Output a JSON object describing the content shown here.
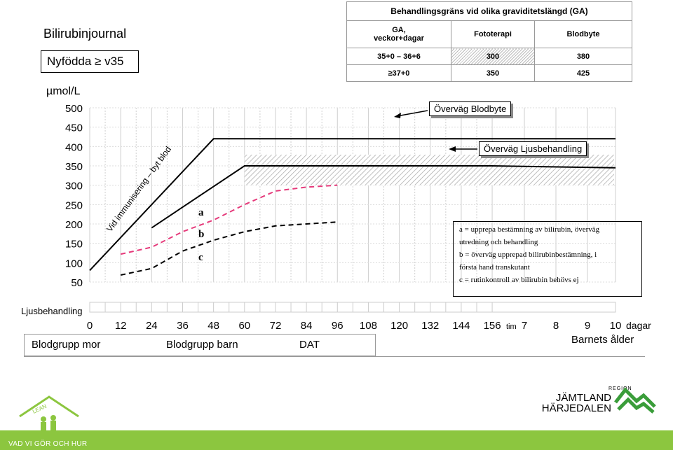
{
  "page": {
    "title": "Bilirubinjournal",
    "subtitle": "Nyfödda ≥ v35",
    "footer_text": "VAD VI GÖR OCH HUR"
  },
  "ga_table": {
    "title": "Behandlingsgräns vid olika graviditetslängd (GA)",
    "headers": [
      "GA,\nveckor+dagar",
      "Fototerapi",
      "Blodbyte"
    ],
    "rows": [
      [
        "35+0 – 36+6",
        "300",
        "380"
      ],
      [
        "≥37+0",
        "350",
        "425"
      ]
    ]
  },
  "legend_text": [
    "a = upprepa bestämning av bilirubin, överväg",
    "utredning och behandling",
    "b = överväg upprepad bilirubinbestämning, i",
    "första hand transkutant",
    "c = rutinkontroll av bilirubin behövs ej"
  ],
  "callouts": {
    "blodbyte": "Överväg Blodbyte",
    "ljusbehandling": "Överväg Ljusbehandling"
  },
  "bottom_table": {
    "cells": [
      "Blodgrupp mor",
      "Blodgrupp barn",
      "DAT"
    ]
  },
  "logo": {
    "region_small": "REGION",
    "region_line1": "JÄMTLAND",
    "region_line2": "HÄRJEDALEN",
    "lean": "LEAN"
  },
  "chart_data": {
    "type": "line",
    "ylabel": "µmol/L",
    "xlabel": "Barnets ålder",
    "x_unit_hours": "tim",
    "x_unit_days": "dagar",
    "row_label": "Ljusbehandling",
    "y_ticks": [
      500,
      450,
      400,
      350,
      300,
      250,
      200,
      150,
      100,
      50
    ],
    "ylim": [
      50,
      500
    ],
    "x_tick_labels": [
      "0",
      "12",
      "24",
      "36",
      "48",
      "60",
      "72",
      "84",
      "96",
      "108",
      "120",
      "132",
      "144",
      "156",
      "7",
      "8",
      "9",
      "10"
    ],
    "grid": true,
    "annotations": {
      "immunization": "Vid immunisering – byt blod",
      "a": "a",
      "b": "b",
      "c": "c"
    },
    "series": [
      {
        "key": "blodbyte",
        "style": "solid",
        "color": "#000000",
        "x": [
          0,
          48,
          156,
          "10d"
        ],
        "y": [
          80,
          420,
          420,
          420
        ]
      },
      {
        "key": "ljus",
        "style": "solid",
        "color": "#000000",
        "x": [
          24,
          60,
          156,
          "10d"
        ],
        "y": [
          190,
          350,
          350,
          345
        ]
      },
      {
        "key": "a",
        "style": "dashed",
        "color": "#e5397a",
        "x": [
          12,
          24,
          36,
          48,
          60,
          72,
          84,
          96
        ],
        "y": [
          122,
          140,
          180,
          210,
          250,
          285,
          295,
          300
        ]
      },
      {
        "key": "c",
        "style": "dashed",
        "color": "#000000",
        "x": [
          12,
          24,
          36,
          48,
          60,
          72,
          84,
          96
        ],
        "y": [
          68,
          85,
          130,
          158,
          180,
          195,
          200,
          205
        ]
      }
    ],
    "hatch_band": {
      "y": [
        300,
        350
      ],
      "from_x": 60
    }
  }
}
